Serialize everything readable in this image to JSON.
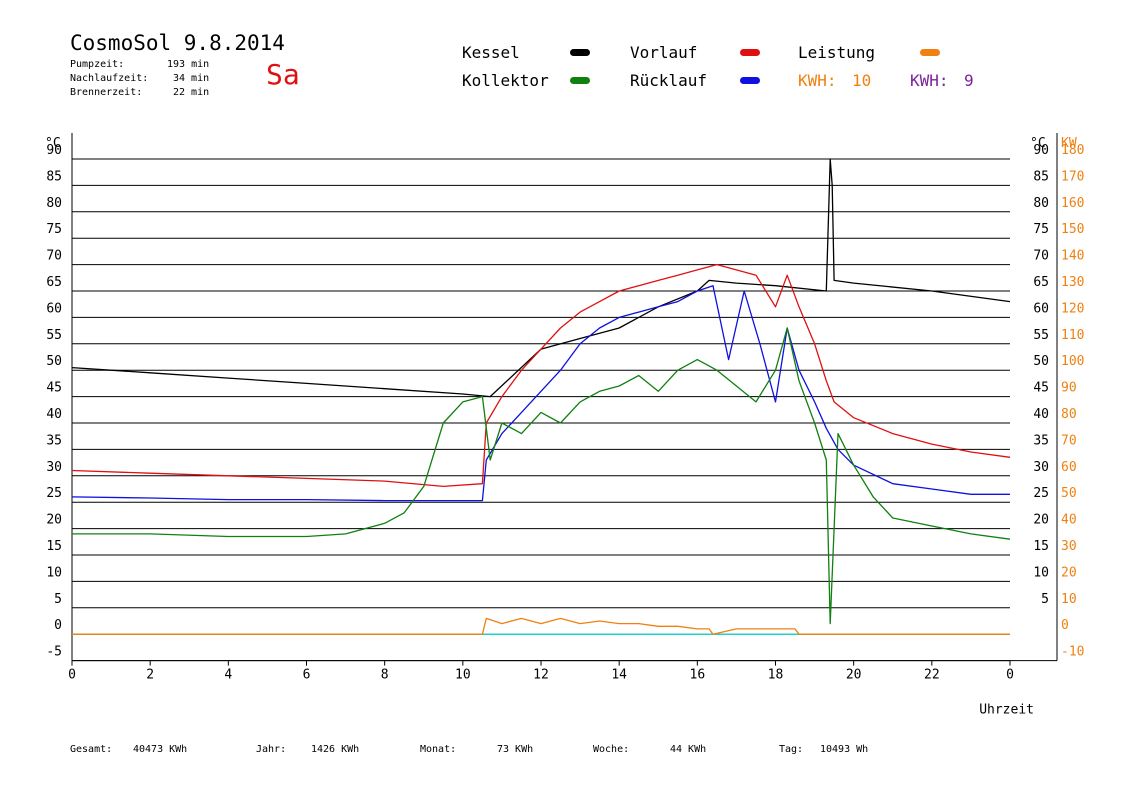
{
  "header": {
    "title": "CosmoSol 9.8.2014",
    "day": "Sa",
    "stats": [
      {
        "label": "Pumpzeit:",
        "value": "193 min"
      },
      {
        "label": "Nachlaufzeit:",
        "value": "34 min"
      },
      {
        "label": "Brennerzeit:",
        "value": "22 min"
      }
    ]
  },
  "legend": {
    "kessel": {
      "label": "Kessel",
      "color": "#000000"
    },
    "vorlauf": {
      "label": "Vorlauf",
      "color": "#e01010"
    },
    "leistung": {
      "label": "Leistung",
      "color": "#f08010"
    },
    "kollektor": {
      "label": "Kollektor",
      "color": "#108010"
    },
    "ruecklauf": {
      "label": "Rücklauf",
      "color": "#1010e0"
    },
    "kwh1": {
      "label": "KWH:",
      "value": "10",
      "color": "#f08010"
    },
    "kwh2": {
      "label": "KWH:",
      "value": "9",
      "color": "#8020a0"
    }
  },
  "footer": {
    "gesamt": {
      "label": "Gesamt:",
      "value": "40473 KWh"
    },
    "jahr": {
      "label": "Jahr:",
      "value": "1426 KWh"
    },
    "monat": {
      "label": "Monat:",
      "value": "73 KWh"
    },
    "woche": {
      "label": "Woche:",
      "value": "44 KWh"
    },
    "tag": {
      "label": "Tag:",
      "value": "10493 Wh"
    }
  },
  "chart_data": {
    "type": "line",
    "xlabel": "Uhrzeit",
    "ylabel_left": "°C",
    "ylabel_right_temp": "°C",
    "ylabel_right_power": "KW",
    "xlim": [
      0,
      24
    ],
    "ylim": [
      -5,
      90
    ],
    "power_lim": [
      -10,
      180
    ],
    "x_ticks": [
      "0",
      "2",
      "4",
      "6",
      "8",
      "10",
      "12",
      "14",
      "16",
      "18",
      "20",
      "22",
      "0"
    ],
    "y_ticks_left": [
      "-5",
      "0",
      "5",
      "10",
      "15",
      "20",
      "25",
      "30",
      "35",
      "40",
      "45",
      "50",
      "55",
      "60",
      "65",
      "70",
      "75",
      "80",
      "85",
      "90"
    ],
    "y_ticks_right": [
      "5",
      "10",
      "15",
      "20",
      "25",
      "30",
      "35",
      "40",
      "45",
      "50",
      "55",
      "60",
      "65",
      "70",
      "75",
      "80",
      "85",
      "90"
    ],
    "power_ticks": [
      "-10",
      "0",
      "10",
      "20",
      "30",
      "40",
      "50",
      "60",
      "70",
      "80",
      "90",
      "100",
      "110",
      "120",
      "130",
      "140",
      "150",
      "160",
      "170",
      "180"
    ],
    "grid": true,
    "series": [
      {
        "name": "Kessel",
        "color": "#000000",
        "x": [
          0,
          2,
          4,
          6,
          8,
          10,
          10.7,
          12,
          13,
          14,
          15,
          16,
          16.3,
          17,
          18,
          19.3,
          19.4,
          19.45,
          19.5,
          20,
          22,
          24
        ],
        "y": [
          50.5,
          49.5,
          48.5,
          47.5,
          46.5,
          45.5,
          45,
          54,
          56,
          58,
          62,
          65,
          67,
          66.5,
          66,
          65,
          90,
          85,
          67,
          66.5,
          65,
          63
        ]
      },
      {
        "name": "Vorlauf",
        "color": "#e01010",
        "x": [
          0,
          2,
          4,
          6,
          8,
          9.5,
          10.5,
          10.6,
          11,
          11.5,
          12,
          12.5,
          13,
          13.5,
          14,
          14.5,
          15,
          15.5,
          16,
          16.5,
          17,
          17.5,
          18,
          18.3,
          18.6,
          19,
          19.3,
          19.5,
          20,
          21,
          22,
          23,
          24
        ],
        "y": [
          31,
          30.5,
          30,
          29.5,
          29,
          28,
          28.5,
          40,
          45,
          50,
          54,
          58,
          61,
          63,
          65,
          66,
          67,
          68,
          69,
          70,
          69,
          68,
          62,
          68,
          62,
          55,
          48,
          44,
          41,
          38,
          36,
          34.5,
          33.5
        ]
      },
      {
        "name": "Rücklauf",
        "color": "#1010e0",
        "x": [
          0,
          2,
          4,
          6,
          8,
          10,
          10.5,
          10.6,
          11,
          11.5,
          12,
          12.5,
          13,
          13.5,
          14,
          14.5,
          15,
          15.5,
          16,
          16.4,
          16.8,
          17.2,
          17.6,
          18,
          18.3,
          18.6,
          19,
          19.3,
          19.6,
          20,
          21,
          22,
          23,
          24
        ],
        "y": [
          26,
          25.8,
          25.5,
          25.5,
          25.3,
          25.3,
          25.3,
          33,
          38,
          42,
          46,
          50,
          55,
          58,
          60,
          61,
          62,
          63,
          65,
          66,
          52,
          65,
          55,
          44,
          58,
          50,
          44,
          39,
          35,
          32,
          28.5,
          27.5,
          26.5,
          26.5
        ]
      },
      {
        "name": "Kollektor",
        "color": "#108010",
        "x": [
          0,
          2,
          4,
          6,
          7,
          8,
          8.5,
          9,
          9.5,
          10,
          10.5,
          10.7,
          11,
          11.5,
          12,
          12.5,
          13,
          13.5,
          14,
          14.5,
          15,
          15.5,
          16,
          16.5,
          17,
          17.5,
          18,
          18.3,
          18.6,
          19,
          19.3,
          19.4,
          19.6,
          20,
          20.5,
          21,
          22,
          23,
          24
        ],
        "y": [
          19,
          19,
          18.5,
          18.5,
          19,
          21,
          23,
          28,
          40,
          44,
          45,
          33,
          40,
          38,
          42,
          40,
          44,
          46,
          47,
          49,
          46,
          50,
          52,
          50,
          47,
          44,
          50,
          58,
          48,
          40,
          33,
          2,
          38,
          32,
          26,
          22,
          20.5,
          19,
          18
        ]
      },
      {
        "name": "Leistung",
        "color": "#f08010",
        "x": [
          0,
          10.5,
          10.6,
          11,
          11.5,
          12,
          12.5,
          13,
          13.5,
          14,
          14.5,
          15,
          15.5,
          16,
          16.3,
          16.4,
          17,
          17.5,
          18,
          18.5,
          18.6,
          24
        ],
        "y": [
          0,
          0,
          3,
          2,
          3,
          2,
          3,
          2,
          2.5,
          2,
          2,
          1.5,
          1.5,
          1,
          1,
          0,
          1,
          1,
          1,
          1,
          0,
          0
        ]
      }
    ]
  }
}
